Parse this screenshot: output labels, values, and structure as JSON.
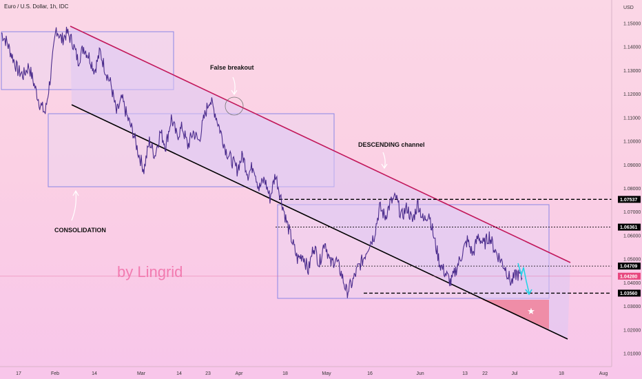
{
  "header": {
    "title": "Euro / U.S. Dollar, 1h, IDC",
    "currency": "USD"
  },
  "watermark": "by Lingrid",
  "annotations": {
    "false_breakout": "False breakout",
    "descending_channel": "DESCENDING channel",
    "consolidation": "CONSOLIDATION"
  },
  "chart_data": {
    "type": "line",
    "yticks": [
      "1.15000",
      "1.14000",
      "1.13000",
      "1.12000",
      "1.11000",
      "1.10000",
      "1.09000",
      "1.08000",
      "1.07000",
      "1.06000",
      "1.05000",
      "1.04000",
      "1.03000",
      "1.02000",
      "1.01000"
    ],
    "ylim": [
      1.008,
      1.157
    ],
    "xticks": [
      "17",
      "Feb",
      "14",
      "Mar",
      "14",
      "23",
      "Apr",
      "18",
      "May",
      "16",
      "Jun",
      "13",
      "22",
      "Jul",
      "18",
      "Aug"
    ],
    "levels": [
      {
        "label": "1.07537",
        "value": 1.07537,
        "style": "dashed-bold"
      },
      {
        "label": "1.06361",
        "value": 1.06361,
        "style": "dotted"
      },
      {
        "label": "1.04709",
        "value": 1.04709,
        "style": "dotted"
      },
      {
        "label": "1.03560",
        "value": 1.0356,
        "style": "dashed-bold"
      }
    ],
    "current_price": {
      "label": "1.04280",
      "value": 1.0428
    },
    "series": [
      {
        "points": [
          [
            0,
            1.146
          ],
          [
            1,
            1.142
          ],
          [
            2,
            1.136
          ],
          [
            3,
            1.13
          ],
          [
            4,
            1.128
          ],
          [
            5,
            1.132
          ],
          [
            6,
            1.124
          ],
          [
            7,
            1.116
          ],
          [
            8,
            1.112
          ],
          [
            9,
            1.128
          ],
          [
            10,
            1.148
          ],
          [
            11,
            1.143
          ],
          [
            12,
            1.146
          ],
          [
            13,
            1.142
          ],
          [
            14,
            1.134
          ],
          [
            15,
            1.14
          ],
          [
            16,
            1.136
          ],
          [
            17,
            1.13
          ],
          [
            18,
            1.138
          ],
          [
            19,
            1.13
          ],
          [
            20,
            1.124
          ],
          [
            21,
            1.112
          ],
          [
            22,
            1.118
          ],
          [
            23,
            1.11
          ],
          [
            24,
            1.104
          ],
          [
            25,
            1.095
          ],
          [
            26,
            1.088
          ],
          [
            27,
            1.1
          ],
          [
            28,
            1.094
          ],
          [
            29,
            1.104
          ],
          [
            30,
            1.098
          ],
          [
            31,
            1.11
          ],
          [
            32,
            1.102
          ],
          [
            33,
            1.106
          ],
          [
            34,
            1.098
          ],
          [
            35,
            1.104
          ],
          [
            36,
            1.1
          ],
          [
            37,
            1.11
          ],
          [
            38,
            1.118
          ],
          [
            39,
            1.112
          ],
          [
            40,
            1.104
          ],
          [
            41,
            1.096
          ],
          [
            42,
            1.092
          ],
          [
            43,
            1.088
          ],
          [
            44,
            1.094
          ],
          [
            45,
            1.086
          ],
          [
            46,
            1.09
          ],
          [
            47,
            1.08
          ],
          [
            48,
            1.084
          ],
          [
            49,
            1.076
          ],
          [
            50,
            1.086
          ],
          [
            51,
            1.076
          ],
          [
            52,
            1.066
          ],
          [
            53,
            1.058
          ],
          [
            54,
            1.05
          ],
          [
            55,
            1.052
          ],
          [
            56,
            1.045
          ],
          [
            57,
            1.056
          ],
          [
            58,
            1.048
          ],
          [
            59,
            1.058
          ],
          [
            60,
            1.048
          ],
          [
            61,
            1.05
          ],
          [
            62,
            1.044
          ],
          [
            63,
            1.036
          ],
          [
            64,
            1.04
          ],
          [
            65,
            1.046
          ],
          [
            66,
            1.05
          ],
          [
            67,
            1.056
          ],
          [
            68,
            1.06
          ],
          [
            69,
            1.072
          ],
          [
            70,
            1.068
          ],
          [
            71,
            1.074
          ],
          [
            72,
            1.076
          ],
          [
            73,
            1.068
          ],
          [
            74,
            1.072
          ],
          [
            75,
            1.066
          ],
          [
            76,
            1.074
          ],
          [
            77,
            1.066
          ],
          [
            78,
            1.07
          ],
          [
            79,
            1.058
          ],
          [
            80,
            1.048
          ],
          [
            81,
            1.044
          ],
          [
            82,
            1.04
          ],
          [
            83,
            1.046
          ],
          [
            84,
            1.052
          ],
          [
            85,
            1.058
          ],
          [
            86,
            1.052
          ],
          [
            87,
            1.06
          ],
          [
            88,
            1.056
          ],
          [
            89,
            1.06
          ],
          [
            90,
            1.054
          ],
          [
            91,
            1.05
          ],
          [
            92,
            1.046
          ],
          [
            93,
            1.04
          ],
          [
            94,
            1.044
          ],
          [
            95,
            1.042
          ]
        ]
      }
    ]
  }
}
